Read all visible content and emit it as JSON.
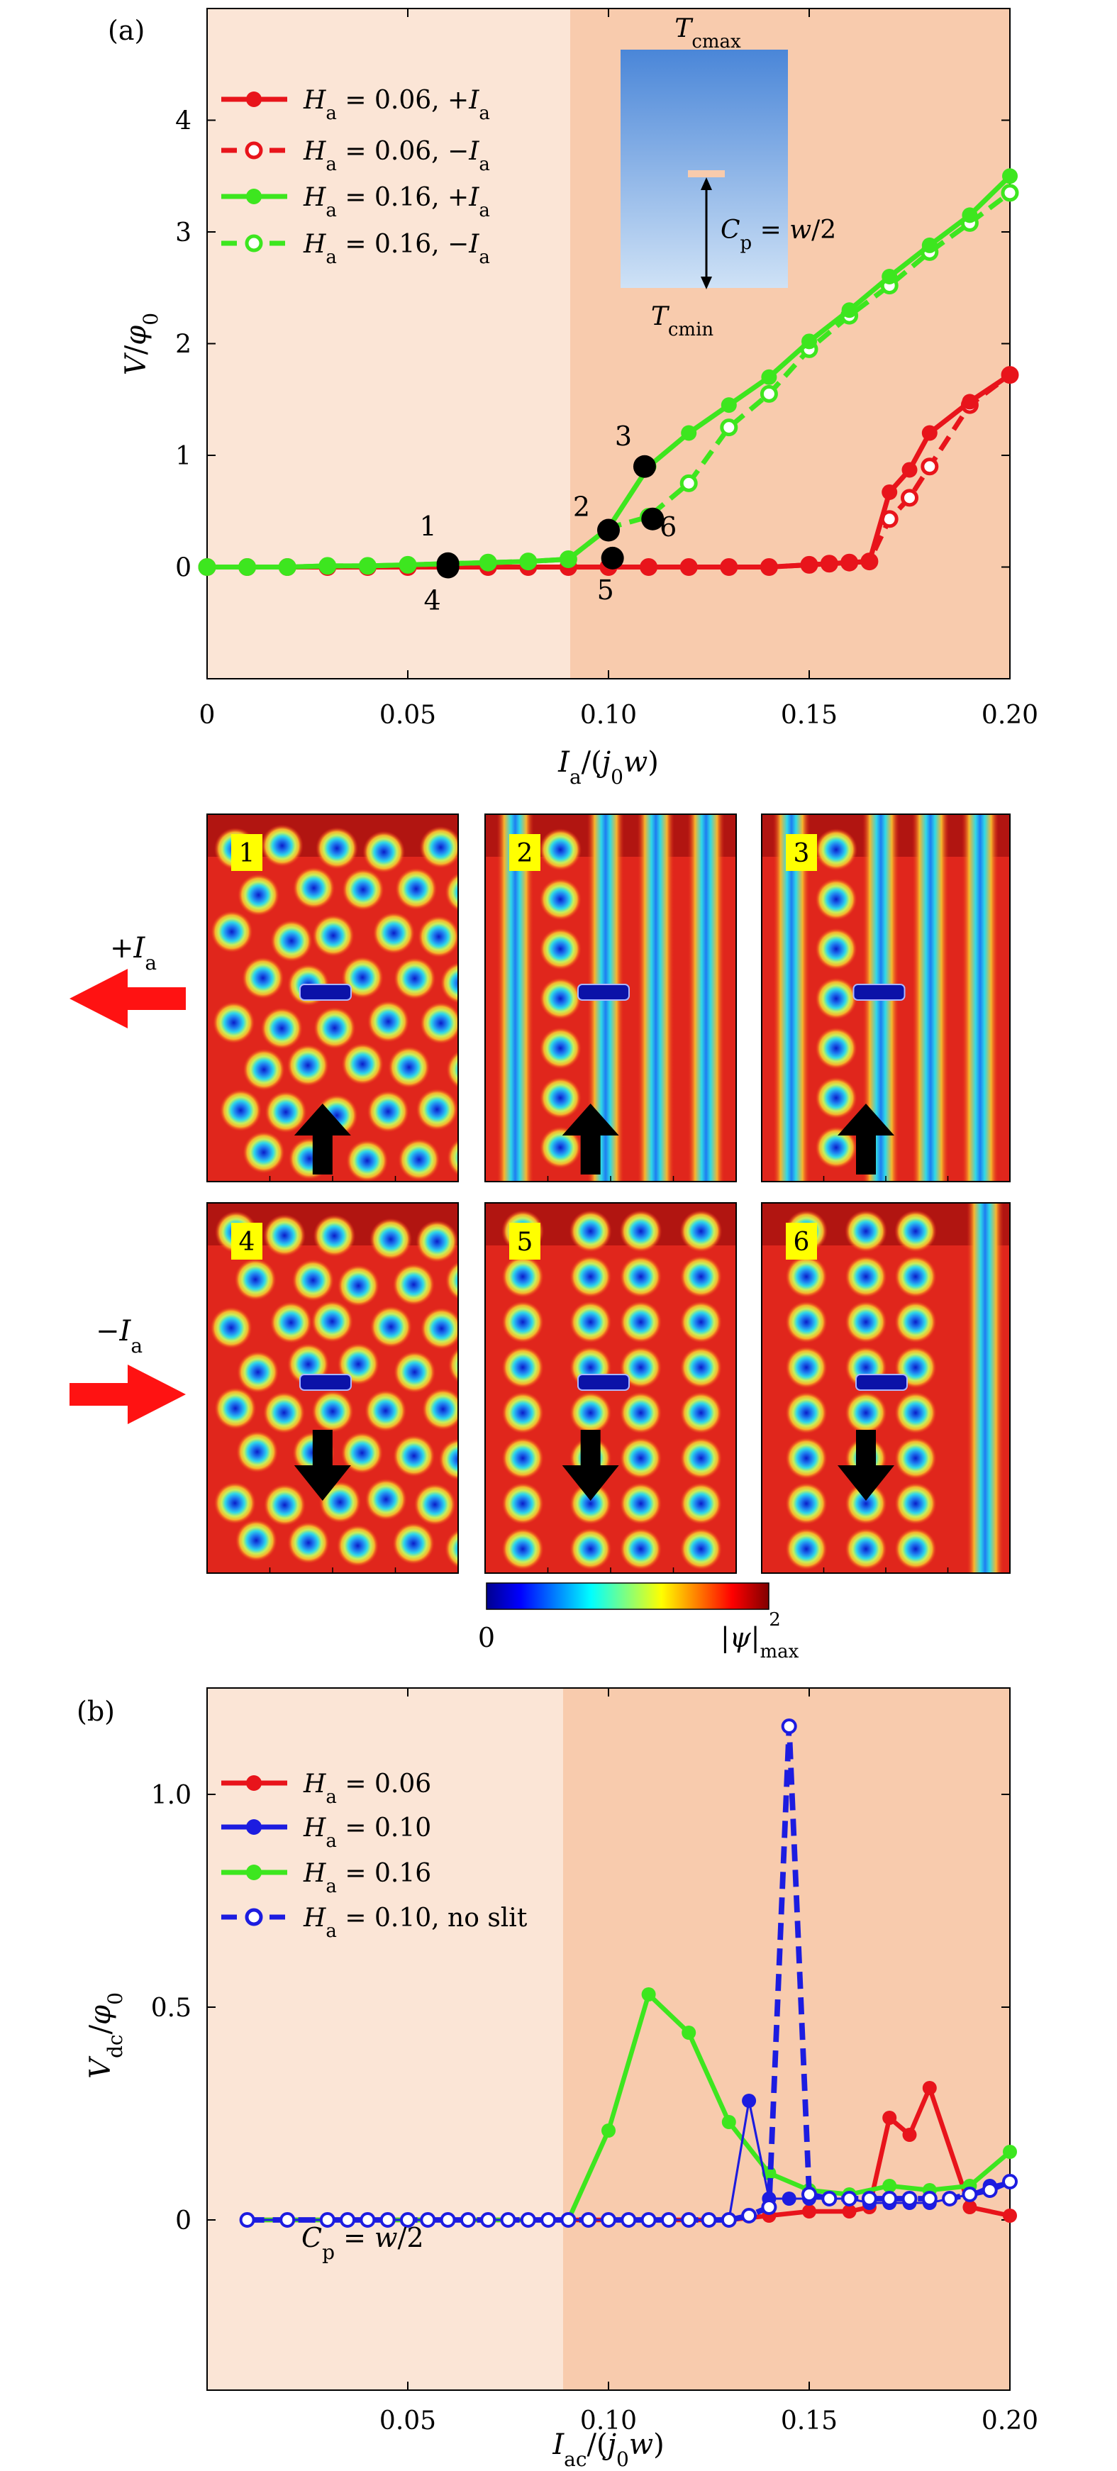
{
  "chart_data": [
    {
      "panel_label": "(a)",
      "type": "line",
      "xlabel": "I_a/(j_0 w)",
      "ylabel": "V/φ_0",
      "xlim": [
        0,
        0.2
      ],
      "ylim": [
        -1,
        5
      ],
      "x_ticks": [
        "0",
        "0.05",
        "0.10",
        "0.15",
        "0.20"
      ],
      "y_ticks": [
        "0",
        "1",
        "2",
        "3",
        "4"
      ],
      "shaded_regions": [
        {
          "from": 0,
          "to": 0.09,
          "color": "#fbe5d6"
        },
        {
          "from": 0.09,
          "to": 0.2,
          "color": "#f8cbad"
        }
      ],
      "series": [
        {
          "name": "H_a = 0.06, +I_a",
          "color": "#e8141b",
          "marker": "filled",
          "dashed": false,
          "x": [
            0,
            0.01,
            0.02,
            0.03,
            0.04,
            0.05,
            0.06,
            0.07,
            0.08,
            0.09,
            0.1,
            0.11,
            0.12,
            0.13,
            0.14,
            0.15,
            0.155,
            0.16,
            0.165,
            0.17,
            0.175,
            0.18,
            0.19,
            0.2
          ],
          "y": [
            0,
            0,
            0,
            0,
            0,
            0,
            0,
            0,
            0,
            0,
            0,
            0,
            0,
            0,
            0,
            0.02,
            0.03,
            0.04,
            0.05,
            0.67,
            0.87,
            1.2,
            1.48,
            1.72
          ]
        },
        {
          "name": "H_a = 0.06, −I_a",
          "color": "#e8141b",
          "marker": "open",
          "dashed": true,
          "x": [
            0,
            0.01,
            0.02,
            0.03,
            0.04,
            0.05,
            0.06,
            0.07,
            0.08,
            0.09,
            0.1,
            0.11,
            0.12,
            0.13,
            0.14,
            0.15,
            0.155,
            0.16,
            0.165,
            0.17,
            0.175,
            0.18,
            0.19,
            0.2
          ],
          "y": [
            0,
            0,
            0,
            0,
            0,
            0,
            0,
            0,
            0,
            0,
            0,
            0,
            0,
            0,
            0,
            0.02,
            0.03,
            0.04,
            0.05,
            0.43,
            0.62,
            0.9,
            1.45,
            1.72
          ]
        },
        {
          "name": "H_a = 0.16, +I_a",
          "color": "#3de61f",
          "marker": "filled",
          "dashed": false,
          "x": [
            0,
            0.01,
            0.02,
            0.03,
            0.04,
            0.05,
            0.06,
            0.07,
            0.08,
            0.09,
            0.1,
            0.11,
            0.12,
            0.13,
            0.14,
            0.15,
            0.16,
            0.17,
            0.18,
            0.19,
            0.2
          ],
          "y": [
            0,
            0,
            0,
            0.01,
            0.01,
            0.02,
            0.03,
            0.04,
            0.05,
            0.07,
            0.35,
            0.9,
            1.2,
            1.45,
            1.7,
            2.02,
            2.3,
            2.6,
            2.88,
            3.15,
            3.5
          ]
        },
        {
          "name": "H_a = 0.16, −I_a",
          "color": "#3de61f",
          "marker": "open",
          "dashed": true,
          "x": [
            0,
            0.01,
            0.02,
            0.03,
            0.04,
            0.05,
            0.06,
            0.07,
            0.08,
            0.09,
            0.1,
            0.11,
            0.12,
            0.13,
            0.14,
            0.15,
            0.16,
            0.17,
            0.18,
            0.19,
            0.2
          ],
          "y": [
            0,
            0,
            0,
            0.01,
            0.01,
            0.02,
            0.03,
            0.04,
            0.05,
            0.07,
            0.35,
            0.45,
            0.75,
            1.25,
            1.55,
            1.95,
            2.25,
            2.52,
            2.82,
            3.08,
            3.35
          ]
        }
      ],
      "highlight_points": [
        {
          "label": "1",
          "x": 0.06,
          "y": 0.03
        },
        {
          "label": "4",
          "x": 0.06,
          "y": 0.0
        },
        {
          "label": "2",
          "x": 0.1,
          "y": 0.33
        },
        {
          "label": "5",
          "x": 0.101,
          "y": 0.08
        },
        {
          "label": "3",
          "x": 0.109,
          "y": 0.9
        },
        {
          "label": "6",
          "x": 0.111,
          "y": 0.43
        }
      ],
      "inset": {
        "top_label": "T_cmax",
        "bottom_label": "T_cmin",
        "annotation": "C_p = w/2"
      }
    },
    {
      "panel_label": "(b)",
      "type": "line",
      "xlabel": "I_ac/(j_0 w)",
      "ylabel": "V_dc/φ_0",
      "xlim": [
        0,
        0.2
      ],
      "ylim": [
        -0.4,
        1.25
      ],
      "x_ticks": [
        "0.05",
        "0.10",
        "0.15",
        "0.20"
      ],
      "y_ticks": [
        "0",
        "0.5",
        "1.0"
      ],
      "annotation": "C_p = w/2",
      "shaded_regions": [
        {
          "from": 0,
          "to": 0.09,
          "color": "#fbe5d6"
        },
        {
          "from": 0.09,
          "to": 0.2,
          "color": "#f8cbad"
        }
      ],
      "series": [
        {
          "name": "H_a = 0.06",
          "color": "#e8141b",
          "marker": "filled",
          "dashed": false,
          "lw": 2.5,
          "x": [
            0.01,
            0.02,
            0.03,
            0.04,
            0.05,
            0.06,
            0.07,
            0.08,
            0.09,
            0.1,
            0.11,
            0.12,
            0.13,
            0.14,
            0.15,
            0.16,
            0.165,
            0.17,
            0.175,
            0.18,
            0.19,
            0.2
          ],
          "y": [
            0,
            0,
            0,
            0,
            0,
            0,
            0,
            0,
            0,
            0,
            0,
            0,
            0,
            0.01,
            0.02,
            0.02,
            0.03,
            0.24,
            0.2,
            0.31,
            0.03,
            0.01
          ]
        },
        {
          "name": "H_a = 0.10",
          "color": "#1c1ce0",
          "marker": "filled",
          "dashed": false,
          "lw": 1.2,
          "x": [
            0.01,
            0.02,
            0.03,
            0.035,
            0.04,
            0.045,
            0.05,
            0.055,
            0.06,
            0.065,
            0.07,
            0.075,
            0.08,
            0.085,
            0.09,
            0.095,
            0.1,
            0.105,
            0.11,
            0.115,
            0.12,
            0.125,
            0.13,
            0.135,
            0.14,
            0.145,
            0.15,
            0.155,
            0.16,
            0.165,
            0.17,
            0.175,
            0.18,
            0.185,
            0.19,
            0.195,
            0.2
          ],
          "y": [
            0,
            0,
            0,
            0,
            0,
            0,
            0,
            0,
            0,
            0,
            0,
            0,
            0,
            0,
            0,
            0,
            0,
            0,
            0,
            0,
            0,
            0,
            0,
            0.28,
            0.05,
            0.05,
            0.05,
            0.05,
            0.05,
            0.04,
            0.04,
            0.04,
            0.04,
            0.05,
            0.06,
            0.08,
            0.09
          ]
        },
        {
          "name": "H_a = 0.16",
          "color": "#3de61f",
          "marker": "filled",
          "dashed": false,
          "lw": 2.5,
          "x": [
            0.01,
            0.02,
            0.03,
            0.04,
            0.05,
            0.06,
            0.07,
            0.08,
            0.09,
            0.1,
            0.11,
            0.12,
            0.13,
            0.14,
            0.15,
            0.16,
            0.17,
            0.18,
            0.19,
            0.2
          ],
          "y": [
            0,
            0,
            0,
            0,
            0,
            0,
            0,
            0,
            0,
            0.21,
            0.53,
            0.44,
            0.23,
            0.11,
            0.07,
            0.06,
            0.08,
            0.07,
            0.08,
            0.16
          ]
        },
        {
          "name": "H_a = 0.10, no slit",
          "color": "#1c1ce0",
          "marker": "open",
          "dashed": true,
          "lw": 3,
          "x": [
            0.01,
            0.02,
            0.03,
            0.035,
            0.04,
            0.045,
            0.05,
            0.055,
            0.06,
            0.065,
            0.07,
            0.075,
            0.08,
            0.085,
            0.09,
            0.095,
            0.1,
            0.105,
            0.11,
            0.115,
            0.12,
            0.125,
            0.13,
            0.135,
            0.14,
            0.145,
            0.15,
            0.155,
            0.16,
            0.165,
            0.17,
            0.175,
            0.18,
            0.185,
            0.19,
            0.195,
            0.2
          ],
          "y": [
            0,
            0,
            0,
            0,
            0,
            0,
            0,
            0,
            0,
            0,
            0,
            0,
            0,
            0,
            0,
            0,
            0,
            0,
            0,
            0,
            0,
            0,
            0,
            0.01,
            0.03,
            1.16,
            0.06,
            0.05,
            0.05,
            0.05,
            0.05,
            0.05,
            0.05,
            0.05,
            0.06,
            0.07,
            0.09
          ]
        }
      ]
    }
  ],
  "vortex_panels": [
    {
      "label": "1",
      "row": "+I_a"
    },
    {
      "label": "2",
      "row": "+I_a"
    },
    {
      "label": "3",
      "row": "+I_a"
    },
    {
      "label": "4",
      "row": "−I_a"
    },
    {
      "label": "5",
      "row": "−I_a"
    },
    {
      "label": "6",
      "row": "−I_a"
    }
  ],
  "row_labels": [
    "+I_a",
    "−I_a"
  ],
  "colorbar": {
    "min_label": "0",
    "max_label": "|ψ|²_max"
  }
}
